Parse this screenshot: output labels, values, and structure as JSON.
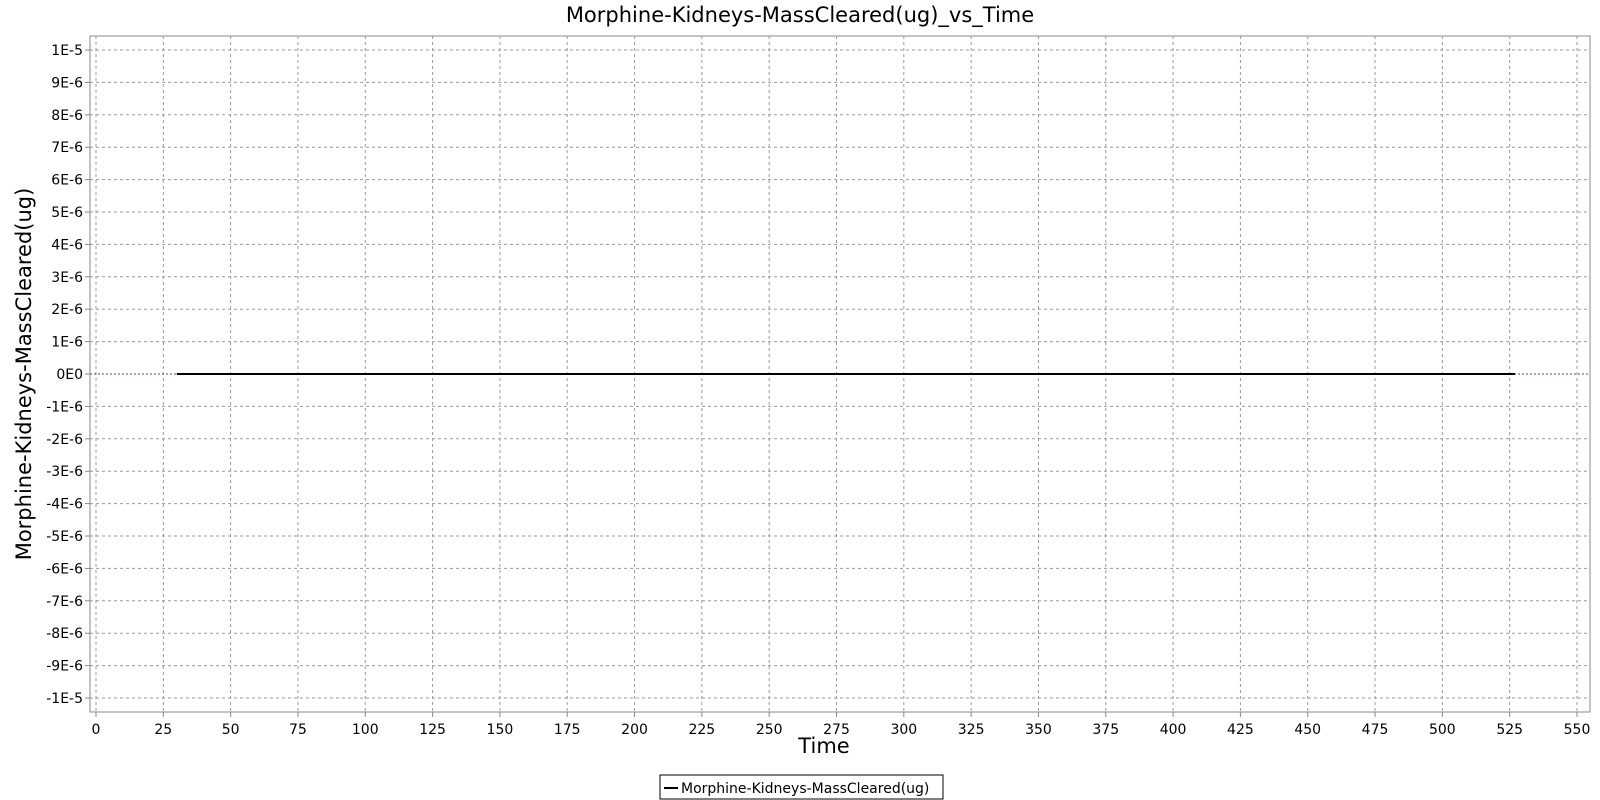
{
  "chart_data": {
    "type": "line",
    "title": "Morphine-Kidneys-MassCleared(ug)_vs_Time",
    "xlabel": "Time",
    "ylabel": "Morphine-Kidneys-MassCleared(ug)",
    "xlim": [
      0,
      555
    ],
    "ylim": [
      -1.05e-05,
      1.05e-05
    ],
    "x_ticks": [
      0,
      25,
      50,
      75,
      100,
      125,
      150,
      175,
      200,
      225,
      250,
      275,
      300,
      325,
      350,
      375,
      400,
      425,
      450,
      475,
      500,
      525,
      550
    ],
    "x_tick_labels": [
      "0",
      "25",
      "50",
      "75",
      "100",
      "125",
      "150",
      "175",
      "200",
      "225",
      "250",
      "275",
      "300",
      "325",
      "350",
      "375",
      "400",
      "425",
      "450",
      "475",
      "500",
      "525",
      "550"
    ],
    "y_ticks": [
      1e-05,
      9e-06,
      8e-06,
      7e-06,
      6e-06,
      5e-06,
      4e-06,
      3e-06,
      2e-06,
      1e-06,
      0,
      -1e-06,
      -2e-06,
      -3e-06,
      -4e-06,
      -5e-06,
      -6e-06,
      -7e-06,
      -8e-06,
      -9e-06,
      -1e-05
    ],
    "y_tick_labels": [
      "1E-5",
      "9E-6",
      "8E-6",
      "7E-6",
      "6E-6",
      "5E-6",
      "4E-6",
      "3E-6",
      "2E-6",
      "1E-6",
      "0E0",
      "-1E-6",
      "-2E-6",
      "-3E-6",
      "-4E-6",
      "-5E-6",
      "-6E-6",
      "-7E-6",
      "-8E-6",
      "-9E-6",
      "-1E-5"
    ],
    "grid": true,
    "legend_position": "bottom-center",
    "series": [
      {
        "name": "Morphine-Kidneys-MassCleared(ug)",
        "color": "#000000",
        "x": [
          30,
          527
        ],
        "y": [
          0,
          0
        ]
      }
    ]
  }
}
